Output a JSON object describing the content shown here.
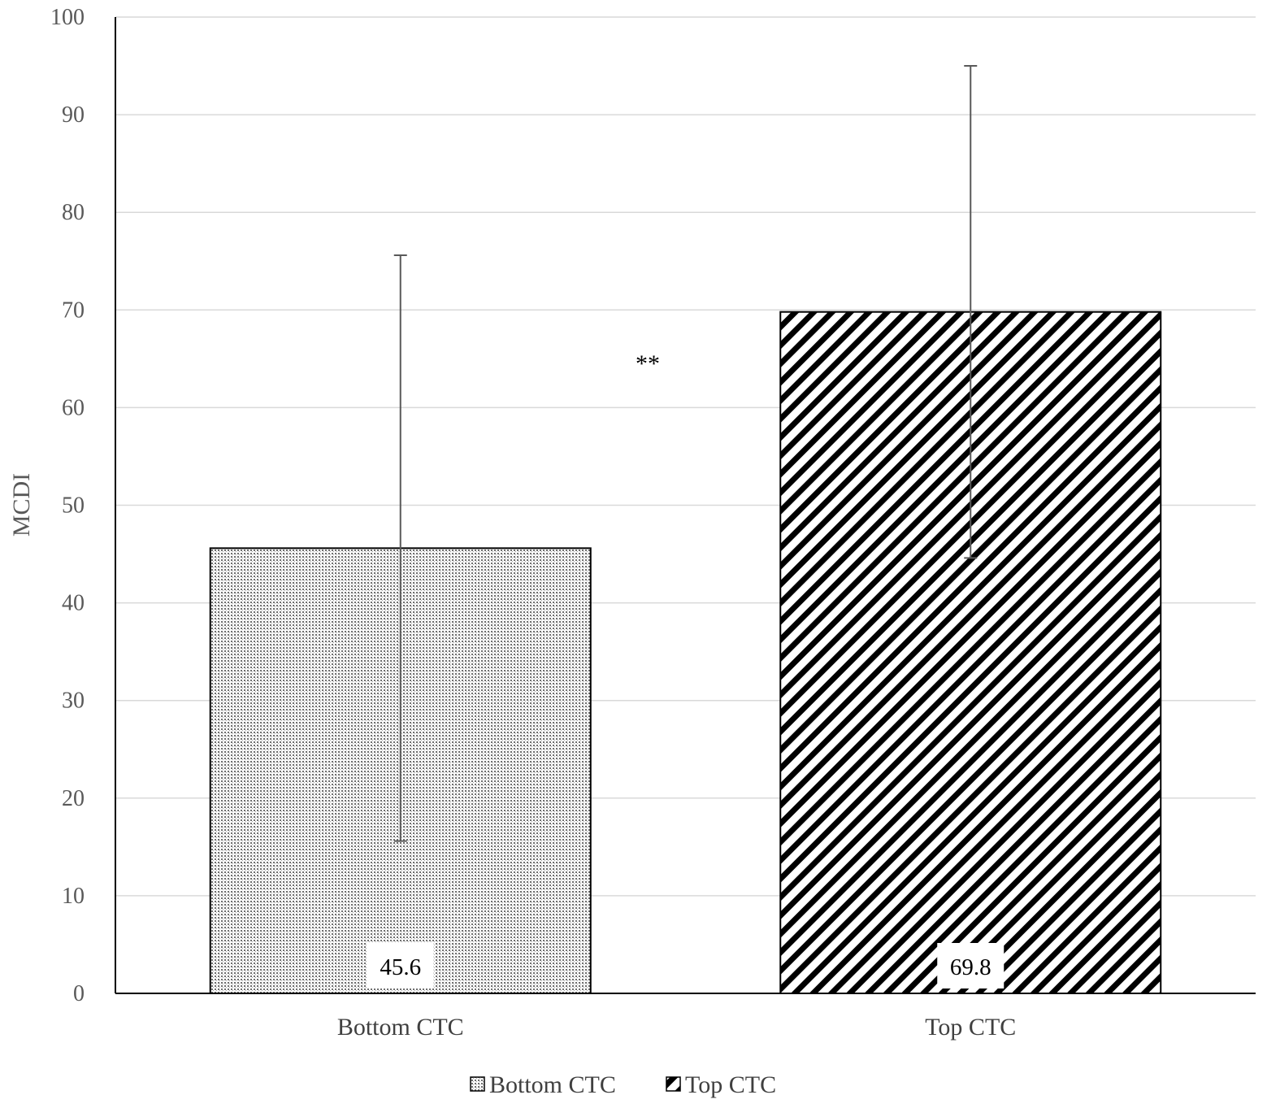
{
  "chart_data": {
    "type": "bar",
    "categories": [
      "Bottom CTC",
      "Top CTC"
    ],
    "series": [
      {
        "name": "Bottom CTC",
        "values": [
          45.6,
          null
        ],
        "error_plus": [
          30,
          null
        ],
        "error_minus": [
          30,
          null
        ],
        "data_labels": [
          "45.6",
          ""
        ],
        "pattern": "dots"
      },
      {
        "name": "Top CTC",
        "values": [
          null,
          69.8
        ],
        "error_plus": [
          null,
          25.2
        ],
        "error_minus": [
          null,
          25.2
        ],
        "data_labels": [
          "",
          "69.8"
        ],
        "pattern": "diagonal-stripes"
      }
    ],
    "xlabel": "",
    "ylabel": "MCDI",
    "ylim": [
      0,
      100
    ],
    "yticks": [
      "0",
      "10",
      "20",
      "30",
      "40",
      "50",
      "60",
      "70",
      "80",
      "90",
      "100"
    ],
    "grid": true,
    "legend_position": "bottom",
    "annotations": [
      {
        "text": "**",
        "between": [
          "Bottom CTC",
          "Top CTC"
        ]
      }
    ],
    "colors": {
      "bar_edge": "#000000",
      "gridline": "#d9d9d9",
      "axis": "#000000",
      "errorbar": "#595959"
    }
  }
}
